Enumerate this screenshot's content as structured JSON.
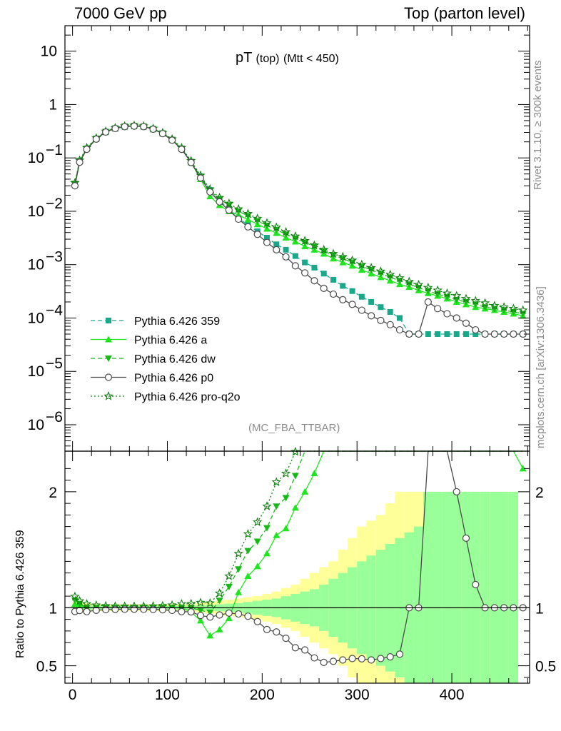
{
  "header": {
    "left": "7000 GeV pp",
    "right": "Top (parton level)"
  },
  "side_labels": {
    "right_top": "Rivet 3.1.10, ≥ 300k events",
    "right_bottom": "mcplots.cern.ch [arXiv:1306.3436]"
  },
  "plot_title": {
    "main": "pT",
    "sub1": "(top)",
    "sub2": "(Mtt < 450)"
  },
  "analysis_tag": "(MC_FBA_TTBAR)",
  "ratio_ylabel": "Ratio to Pythia 6.426 359",
  "colors": {
    "p359": "#1aa88a",
    "a": "#1ee61e",
    "dw": "#16b916",
    "p0": "#4a4a4a",
    "q2o": "#0e7d0e",
    "band_yellow": "#ffff99",
    "band_green": "#99ff99"
  },
  "chart_data": {
    "type": "line",
    "x_ticks": [
      0,
      100,
      200,
      300,
      400
    ],
    "x_tick_labels": [
      "0",
      "100",
      "200",
      "300",
      "400"
    ],
    "xlim": [
      -8,
      482
    ],
    "main": {
      "yscale": "log",
      "ylim": [
        3.2e-07,
        30
      ],
      "y_tick_labels": [
        {
          "value": 10,
          "mantissa": "10",
          "exp": ""
        },
        {
          "value": 1,
          "mantissa": "1",
          "exp": ""
        },
        {
          "value": 0.1,
          "mantissa": "10",
          "exp": "−1"
        },
        {
          "value": 0.01,
          "mantissa": "10",
          "exp": "−2"
        },
        {
          "value": 0.001,
          "mantissa": "10",
          "exp": "−3"
        },
        {
          "value": 0.0001,
          "mantissa": "10",
          "exp": "−4"
        },
        {
          "value": 1e-05,
          "mantissa": "10",
          "exp": "−5"
        },
        {
          "value": 1e-06,
          "mantissa": "10",
          "exp": "−6"
        }
      ],
      "series": [
        {
          "key": "p359",
          "name": "Pythia 6.426 359",
          "line": "dashed",
          "marker": "square",
          "x": [
            2.5,
            7.5,
            15,
            25,
            35,
            45,
            55,
            65,
            75,
            85,
            95,
            105,
            115,
            125,
            135,
            145,
            155,
            165,
            175,
            185,
            195,
            205,
            215,
            225,
            235,
            245,
            255,
            265,
            275,
            285,
            295,
            305,
            315,
            325,
            335,
            345,
            355,
            365,
            375,
            385,
            395,
            405,
            415,
            425,
            435,
            445,
            455,
            465,
            475
          ],
          "y": [
            0.031,
            0.085,
            0.15,
            0.23,
            0.31,
            0.36,
            0.39,
            0.4,
            0.39,
            0.35,
            0.29,
            0.22,
            0.15,
            0.085,
            0.045,
            0.025,
            0.016,
            0.011,
            0.0075,
            0.0055,
            0.0042,
            0.0032,
            0.0024,
            0.0019,
            0.00145,
            0.0011,
            0.00088,
            0.00068,
            0.00052,
            0.0004,
            0.00032,
            0.00025,
            0.0002,
            0.00016,
            0.00013,
            0.0001,
            5e-05,
            5e-05,
            5e-05,
            5e-05,
            5e-05,
            5e-05,
            5e-05,
            5e-05,
            5e-05,
            5e-05,
            5e-05,
            5e-05,
            5e-05
          ]
        },
        {
          "key": "a",
          "name": "Pythia 6.426 a",
          "line": "solid",
          "marker": "triangle-up",
          "x": [
            2.5,
            7.5,
            15,
            25,
            35,
            45,
            55,
            65,
            75,
            85,
            95,
            105,
            115,
            125,
            135,
            145,
            155,
            165,
            175,
            185,
            195,
            205,
            215,
            225,
            235,
            245,
            255,
            265,
            275,
            285,
            295,
            305,
            315,
            325,
            335,
            345,
            355,
            365,
            375,
            385,
            395,
            405,
            415,
            425,
            435,
            445,
            455,
            465,
            475
          ],
          "y": [
            0.032,
            0.087,
            0.15,
            0.23,
            0.31,
            0.36,
            0.39,
            0.4,
            0.39,
            0.35,
            0.29,
            0.22,
            0.15,
            0.082,
            0.04,
            0.019,
            0.013,
            0.01,
            0.0085,
            0.007,
            0.0057,
            0.0047,
            0.0039,
            0.0032,
            0.0027,
            0.0022,
            0.0019,
            0.0016,
            0.0013,
            0.0011,
            0.00095,
            0.0008,
            0.00068,
            0.00058,
            0.0005,
            0.00043,
            0.00038,
            0.00033,
            0.00029,
            0.00026,
            0.00023,
            0.0002,
            0.00018,
            0.00016,
            0.00015,
            0.00014,
            0.00013,
            0.00012,
            0.00011
          ]
        },
        {
          "key": "dw",
          "name": "Pythia 6.426 dw",
          "line": "dashed",
          "marker": "triangle-down",
          "x": [
            2.5,
            7.5,
            15,
            25,
            35,
            45,
            55,
            65,
            75,
            85,
            95,
            105,
            115,
            125,
            135,
            145,
            155,
            165,
            175,
            185,
            195,
            205,
            215,
            225,
            235,
            245,
            255,
            265,
            275,
            285,
            295,
            305,
            315,
            325,
            335,
            345,
            355,
            365,
            375,
            385,
            395,
            405,
            415,
            425,
            435,
            445,
            455,
            465,
            475
          ],
          "y": [
            0.033,
            0.088,
            0.15,
            0.23,
            0.31,
            0.36,
            0.39,
            0.4,
            0.39,
            0.35,
            0.29,
            0.22,
            0.15,
            0.085,
            0.044,
            0.024,
            0.017,
            0.013,
            0.01,
            0.0082,
            0.0066,
            0.0054,
            0.0045,
            0.0037,
            0.0031,
            0.0026,
            0.0022,
            0.0018,
            0.0015,
            0.0013,
            0.0011,
            0.00093,
            0.0008,
            0.00068,
            0.00058,
            0.0005,
            0.00043,
            0.00037,
            0.00032,
            0.00028,
            0.00025,
            0.00022,
            0.0002,
            0.00018,
            0.00016,
            0.00015,
            0.00014,
            0.00013,
            0.00012
          ]
        },
        {
          "key": "p0",
          "name": "Pythia 6.426 p0",
          "line": "solid",
          "marker": "circle-open",
          "x": [
            2.5,
            7.5,
            15,
            25,
            35,
            45,
            55,
            65,
            75,
            85,
            95,
            105,
            115,
            125,
            135,
            145,
            155,
            165,
            175,
            185,
            195,
            205,
            215,
            225,
            235,
            245,
            255,
            265,
            275,
            285,
            295,
            305,
            315,
            325,
            335,
            345,
            355,
            365,
            375,
            385,
            395,
            405,
            415,
            425,
            435,
            445,
            455,
            465,
            475
          ],
          "y": [
            0.03,
            0.083,
            0.145,
            0.225,
            0.305,
            0.355,
            0.385,
            0.395,
            0.385,
            0.345,
            0.285,
            0.215,
            0.145,
            0.082,
            0.042,
            0.023,
            0.015,
            0.0105,
            0.0071,
            0.0051,
            0.0037,
            0.0026,
            0.0019,
            0.0014,
            0.00095,
            0.0007,
            0.0005,
            0.00036,
            0.00028,
            0.00022,
            0.00018,
            0.00014,
            0.00011,
            9e-05,
            7.5e-05,
            6e-05,
            5e-05,
            5e-05,
            0.0002,
            0.00015,
            0.00012,
            0.0001,
            8e-05,
            6e-05,
            5e-05,
            5e-05,
            5e-05,
            5e-05,
            5e-05
          ]
        },
        {
          "key": "q2o",
          "name": "Pythia 6.426 pro-q2o",
          "line": "dotted",
          "marker": "star-open",
          "x": [
            2.5,
            7.5,
            15,
            25,
            35,
            45,
            55,
            65,
            75,
            85,
            95,
            105,
            115,
            125,
            135,
            145,
            155,
            165,
            175,
            185,
            195,
            205,
            215,
            225,
            235,
            245,
            255,
            265,
            275,
            285,
            295,
            305,
            315,
            325,
            335,
            345,
            355,
            365,
            375,
            385,
            395,
            405,
            415,
            425,
            435,
            445,
            455,
            465,
            475
          ],
          "y": [
            0.034,
            0.09,
            0.155,
            0.235,
            0.315,
            0.365,
            0.395,
            0.405,
            0.395,
            0.355,
            0.295,
            0.225,
            0.155,
            0.088,
            0.047,
            0.026,
            0.018,
            0.014,
            0.011,
            0.009,
            0.0073,
            0.006,
            0.005,
            0.0041,
            0.0034,
            0.0028,
            0.0023,
            0.0019,
            0.0016,
            0.0014,
            0.0012,
            0.001,
            0.00087,
            0.00075,
            0.00065,
            0.00056,
            0.00048,
            0.00042,
            0.00037,
            0.00033,
            0.00029,
            0.00026,
            0.00023,
            0.00021,
            0.00019,
            0.00017,
            0.00016,
            0.00015,
            0.00014
          ]
        }
      ]
    },
    "ratio": {
      "ylim": [
        0.35,
        2.35
      ],
      "reference": 1,
      "y_ticks": [
        0.5,
        1,
        2
      ],
      "y_tick_labels": [
        "0.5",
        "1",
        "2"
      ],
      "band_x_edges": [
        0,
        10,
        20,
        30,
        40,
        50,
        60,
        70,
        80,
        90,
        100,
        110,
        120,
        130,
        140,
        150,
        160,
        170,
        180,
        190,
        200,
        210,
        220,
        230,
        240,
        250,
        260,
        270,
        280,
        290,
        300,
        310,
        320,
        330,
        340,
        350,
        360,
        370,
        380,
        390,
        400,
        410,
        420,
        430,
        440,
        450,
        460,
        470
      ],
      "band_yellow_halfwidth": [
        0.05,
        0.04,
        0.03,
        0.03,
        0.03,
        0.03,
        0.03,
        0.03,
        0.03,
        0.03,
        0.03,
        0.03,
        0.03,
        0.04,
        0.05,
        0.06,
        0.07,
        0.08,
        0.09,
        0.1,
        0.12,
        0.14,
        0.17,
        0.2,
        0.25,
        0.3,
        0.35,
        0.4,
        0.5,
        0.6,
        0.7,
        0.75,
        0.8,
        0.9,
        1.0,
        1.0,
        1.0,
        1.0,
        1.0,
        1.0,
        1.0,
        1.0,
        1.0,
        1.0,
        1.0,
        1.0,
        1.0
      ],
      "band_green_halfwidth": [
        0.02,
        0.02,
        0.015,
        0.015,
        0.015,
        0.015,
        0.015,
        0.015,
        0.015,
        0.015,
        0.015,
        0.015,
        0.02,
        0.02,
        0.025,
        0.03,
        0.035,
        0.04,
        0.05,
        0.06,
        0.07,
        0.08,
        0.1,
        0.12,
        0.14,
        0.16,
        0.2,
        0.25,
        0.3,
        0.35,
        0.4,
        0.45,
        0.5,
        0.55,
        0.6,
        0.65,
        0.7,
        1.0,
        1.0,
        1.0,
        1.0,
        1.0,
        1.0,
        1.0,
        1.0,
        1.0,
        1.0
      ]
    }
  },
  "legend": [
    {
      "key": "p359",
      "label": "Pythia 6.426 359"
    },
    {
      "key": "a",
      "label": "Pythia 6.426 a"
    },
    {
      "key": "dw",
      "label": "Pythia 6.426 dw"
    },
    {
      "key": "p0",
      "label": "Pythia 6.426 p0"
    },
    {
      "key": "q2o",
      "label": "Pythia 6.426 pro-q2o"
    }
  ]
}
